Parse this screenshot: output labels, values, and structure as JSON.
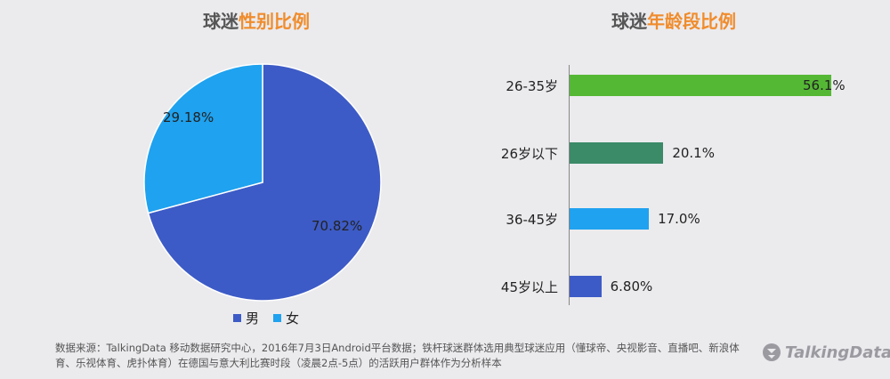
{
  "titles": {
    "left_a": "球迷",
    "left_b": "性别比例",
    "right_a": "球迷",
    "right_b": "年龄段比例"
  },
  "chart_data": [
    {
      "type": "pie",
      "slices": [
        {
          "label": "男",
          "value": 70.82,
          "display": "70.82%",
          "color": "#3d5bc6"
        },
        {
          "label": "女",
          "value": 29.18,
          "display": "29.18%",
          "color": "#1fa2ef"
        }
      ],
      "legend_position": "bottom"
    },
    {
      "type": "bar",
      "orientation": "horizontal",
      "categories": [
        "26-35岁",
        "26岁以下",
        "36-45岁",
        "45岁以上"
      ],
      "values": [
        56.1,
        20.1,
        17.0,
        6.8
      ],
      "value_labels": [
        "56.1%",
        "20.1%",
        "17.0%",
        "6.80%"
      ],
      "colors": [
        "#55b835",
        "#3b8a68",
        "#1fa2ef",
        "#3d5bc6"
      ]
    }
  ],
  "footnote": "数据来源：TalkingData 移动数据研究中心，2016年7月3日Android平台数据；铁杆球迷群体选用典型球迷应用（懂球帝、央视影音、直播吧、新浪体育、乐视体育、虎扑体育）在德国与意大利比赛时段（凌晨2点-5点）的活跃用户群体作为分析样本",
  "brand": "TalkingData",
  "icons": {
    "brand_logo": "talkingdata-logo-icon"
  }
}
